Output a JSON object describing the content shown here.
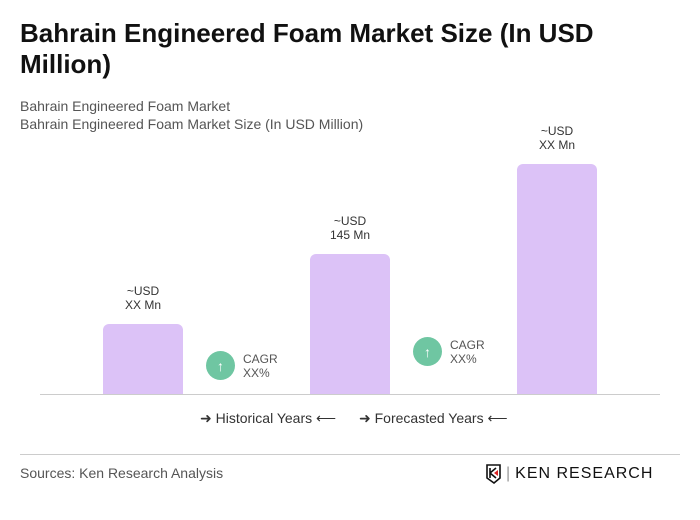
{
  "title": "Bahrain Engineered Foam Market Size (In USD Million)",
  "subtitle1": "Bahrain Engineered Foam Market",
  "subtitle2": "Bahrain Engineered Foam Market Size (In USD Million)",
  "chart_data": {
    "type": "bar",
    "categories": [
      "",
      "",
      ""
    ],
    "values": [
      73,
      145,
      238
    ],
    "data_labels": [
      [
        "~USD",
        "XX Mn"
      ],
      [
        "~USD",
        "145 Mn"
      ],
      [
        "~USD",
        "XX Mn"
      ]
    ],
    "bar_color": "#dcc2f7",
    "grid": false
  },
  "cagr": [
    {
      "label": "CAGR",
      "value": "XX%"
    },
    {
      "label": "CAGR",
      "value": "XX%"
    }
  ],
  "cagr_color": "#6fc6a2",
  "legend": {
    "historical": "Historical Years",
    "forecasted": "Forecasted Years"
  },
  "source": "Sources: Ken Research Analysis",
  "logo": "KEN RESEARCH"
}
